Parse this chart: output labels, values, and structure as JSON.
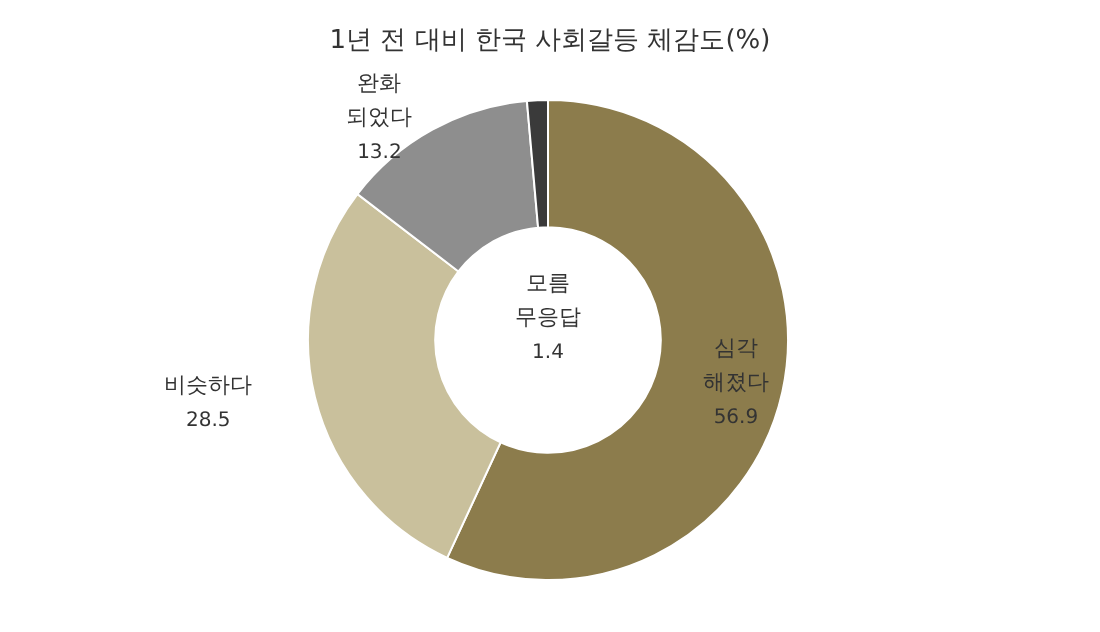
{
  "chart_data": {
    "type": "donut",
    "title": "1년 전 대비 한국 사회갈등 체감도(%)",
    "categories": [
      "심각\n해졌다",
      "비슷하다",
      "완화\n되었다",
      "모름\n무응답"
    ],
    "values": [
      56.9,
      28.5,
      13.2,
      1.4
    ],
    "colors": [
      "#8c7c4c",
      "#c9c09c",
      "#8e8e8e",
      "#3a3a3a"
    ],
    "data_labels": true,
    "legend": false
  }
}
